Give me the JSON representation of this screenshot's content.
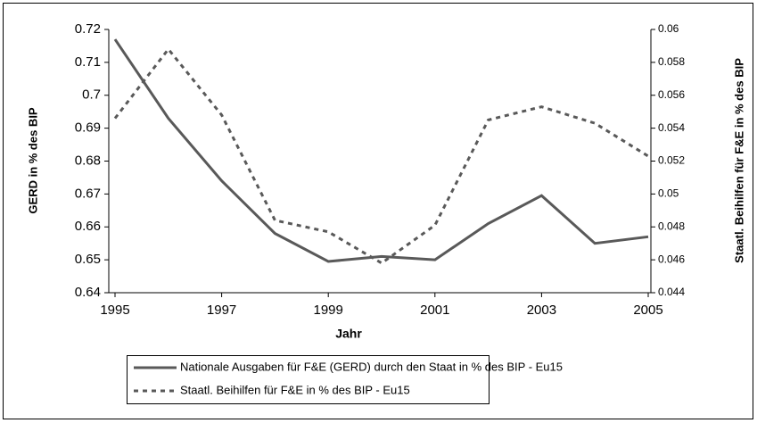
{
  "chart_data": {
    "type": "line",
    "x_label": "Jahr",
    "y_label": "GERD in % des BIP",
    "y2_label": "Staatl. Beihilfen für F&E in % des BIP",
    "x": [
      1995,
      1996,
      1997,
      1998,
      1999,
      2000,
      2001,
      2002,
      2003,
      2004,
      2005
    ],
    "xlim": [
      1995,
      2005
    ],
    "xticks": [
      1995,
      1997,
      1999,
      2001,
      2003,
      2005
    ],
    "ylim": [
      0.64,
      0.72
    ],
    "yticks": [
      0.64,
      0.65,
      0.66,
      0.67,
      0.68,
      0.69,
      0.7,
      0.71,
      0.72
    ],
    "y2lim": [
      0.044,
      0.06
    ],
    "y2ticks": [
      0.044,
      0.046,
      0.048,
      0.05,
      0.052,
      0.054,
      0.056,
      0.058,
      0.06
    ],
    "legend": "bottom",
    "series": [
      {
        "name": "Nationale Ausgaben für F&E (GERD) durch den Staat in % des BIP - Eu15",
        "color": "#595959",
        "style": "solid",
        "values": [
          0.717,
          0.693,
          0.674,
          0.658,
          0.6495,
          0.651,
          0.65,
          0.661,
          0.6695,
          0.655,
          0.657
        ]
      },
      {
        "name": "Staatl. Beihilfen für F&E in % des BIP - Eu15",
        "color": "#595959",
        "style": "dotted",
        "axis": "y2",
        "values": [
          0.0546,
          0.0588,
          0.0548,
          0.0484,
          0.0477,
          0.0458,
          0.0481,
          0.0545,
          0.0553,
          0.0543,
          0.0523
        ]
      }
    ]
  }
}
